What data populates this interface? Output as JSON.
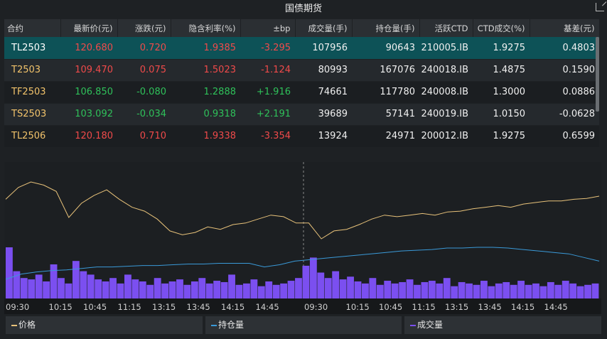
{
  "title": "国债期货",
  "headers": [
    "合约",
    "最新价(元)",
    "涨跌(元)",
    "隐含利率(%)",
    "±bp",
    "成交量(手)",
    "持仓量(手)",
    "活跃CTD",
    "CTD成交(%)",
    "基差(元)"
  ],
  "rows": [
    {
      "code": "TL2503",
      "price": "120.680",
      "chg": "0.720",
      "rate": "1.9385",
      "bp": "-3.295",
      "vol": "107956",
      "oi": "90643",
      "ctd": "210005.IB",
      "ctdpct": "1.9275",
      "basis": "0.4803",
      "dir": "up",
      "bpdir": "up"
    },
    {
      "code": "T2503",
      "price": "109.470",
      "chg": "0.075",
      "rate": "1.5023",
      "bp": "-1.124",
      "vol": "80993",
      "oi": "167076",
      "ctd": "240018.IB",
      "ctdpct": "1.4875",
      "basis": "0.1590",
      "dir": "up",
      "bpdir": "up"
    },
    {
      "code": "TF2503",
      "price": "106.850",
      "chg": "-0.080",
      "rate": "1.2888",
      "bp": "+1.916",
      "vol": "74661",
      "oi": "117780",
      "ctd": "240008.IB",
      "ctdpct": "1.3000",
      "basis": "0.0886",
      "dir": "down",
      "bpdir": "down"
    },
    {
      "code": "TS2503",
      "price": "103.092",
      "chg": "-0.034",
      "rate": "0.9318",
      "bp": "+2.191",
      "vol": "39689",
      "oi": "57141",
      "ctd": "240019.IB",
      "ctdpct": "1.0150",
      "basis": "-0.0628",
      "dir": "down",
      "bpdir": "down"
    },
    {
      "code": "TL2506",
      "price": "120.180",
      "chg": "0.710",
      "rate": "1.9338",
      "bp": "-3.354",
      "vol": "13924",
      "oi": "24971",
      "ctd": "200012.IB",
      "ctdpct": "1.9275",
      "basis": "0.6599",
      "dir": "up",
      "bpdir": "up"
    }
  ],
  "colors": {
    "up": "#f04a4a",
    "down": "#2fc15a",
    "price": "#e8c27a",
    "oi": "#3a9ad9",
    "volume": "#7b4ff0"
  },
  "chart_data": {
    "type": "line",
    "x_ticks": [
      "09:30",
      "10:15",
      "10:45",
      "11:15",
      "13:15",
      "13:45",
      "14:15",
      "14:45",
      "09:30",
      "10:15",
      "10:45",
      "11:15",
      "13:15",
      "13:45",
      "14:15",
      "14:45"
    ],
    "legend": [
      "价格",
      "持仓量",
      "成交量"
    ],
    "series": [
      {
        "name": "价格",
        "values": [
          70,
          85,
          92,
          88,
          80,
          47,
          65,
          75,
          82,
          70,
          60,
          55,
          45,
          30,
          25,
          28,
          35,
          32,
          38,
          40,
          45,
          50,
          48,
          40,
          40,
          20,
          30,
          32,
          38,
          45,
          50,
          48,
          50,
          52,
          50,
          54,
          55,
          58,
          60,
          62,
          60,
          64,
          66,
          68,
          68,
          70,
          71,
          74
        ]
      },
      {
        "name": "持仓量",
        "values": [
          5,
          12,
          15,
          17,
          18,
          20,
          22,
          22,
          23,
          24,
          24,
          25,
          26,
          26,
          27,
          27,
          27,
          22,
          25,
          30,
          32,
          34,
          36,
          38,
          40,
          42,
          44,
          45,
          46,
          48,
          48,
          49,
          49,
          48,
          46,
          44,
          42,
          40,
          35,
          30
        ]
      },
      {
        "name": "成交量",
        "values": [
          75,
          40,
          30,
          28,
          35,
          25,
          50,
          30,
          22,
          55,
          40,
          35,
          28,
          25,
          30,
          22,
          35,
          28,
          25,
          20,
          30,
          22,
          25,
          28,
          20,
          25,
          30,
          22,
          26,
          24,
          35,
          20,
          22,
          28,
          18,
          25,
          20,
          22,
          26,
          30,
          48,
          60,
          38,
          30,
          40,
          28,
          32,
          25,
          22,
          30,
          20,
          26,
          22,
          24,
          28,
          20,
          24,
          26,
          22,
          30,
          18,
          24,
          22,
          20,
          26,
          18,
          22,
          24,
          20,
          26,
          20,
          22,
          18,
          24,
          20,
          26,
          22,
          18,
          20,
          22
        ]
      }
    ]
  }
}
